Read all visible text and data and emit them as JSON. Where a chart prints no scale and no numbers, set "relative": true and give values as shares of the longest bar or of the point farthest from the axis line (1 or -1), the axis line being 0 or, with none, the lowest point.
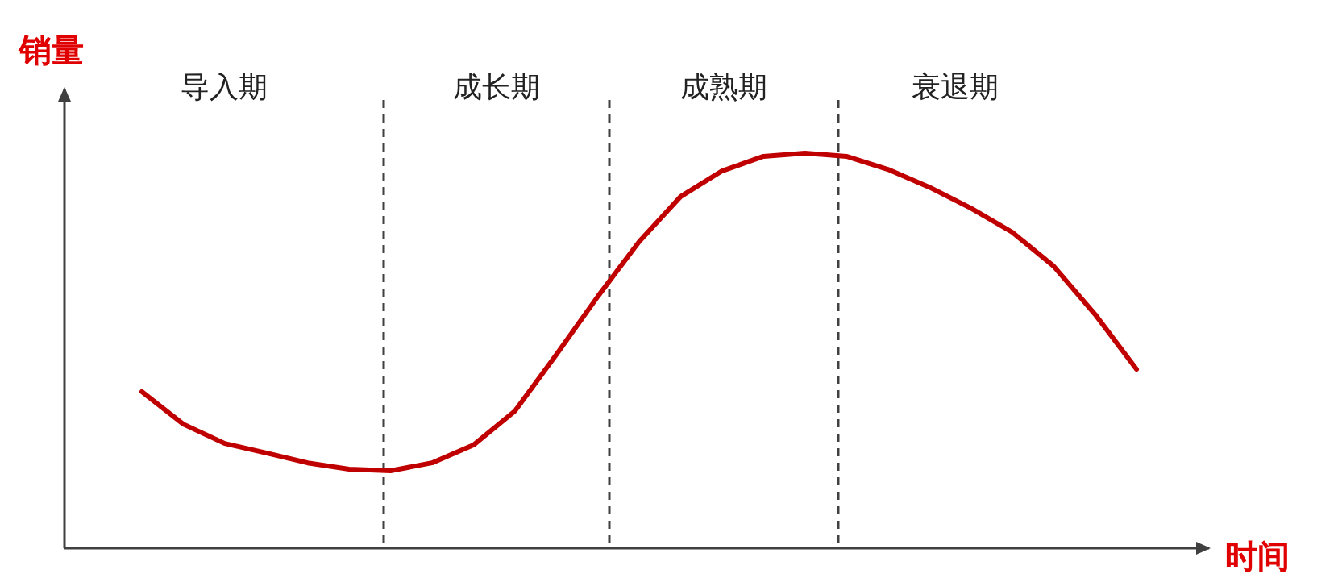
{
  "chart_data": {
    "type": "line",
    "relative": true,
    "xlabel": "时间",
    "ylabel": "销量",
    "categories": [
      null,
      null,
      null,
      null,
      null,
      null,
      null,
      null,
      null,
      null,
      null,
      null,
      null,
      null,
      null,
      null,
      null,
      null,
      null,
      null,
      null,
      null,
      null,
      null,
      null
    ],
    "series": [
      {
        "color": "#c00000",
        "values": [
          0.396,
          0.314,
          0.265,
          0.241,
          0.216,
          0.2,
          0.196,
          0.216,
          0.261,
          0.347,
          0.49,
          0.637,
          0.776,
          0.89,
          0.955,
          0.992,
          1.0,
          0.992,
          0.959,
          0.914,
          0.861,
          0.8,
          0.714,
          0.592,
          0.453
        ]
      }
    ],
    "annotations": [
      "导入期",
      "成长期",
      "成熟期",
      "衰退期"
    ]
  }
}
